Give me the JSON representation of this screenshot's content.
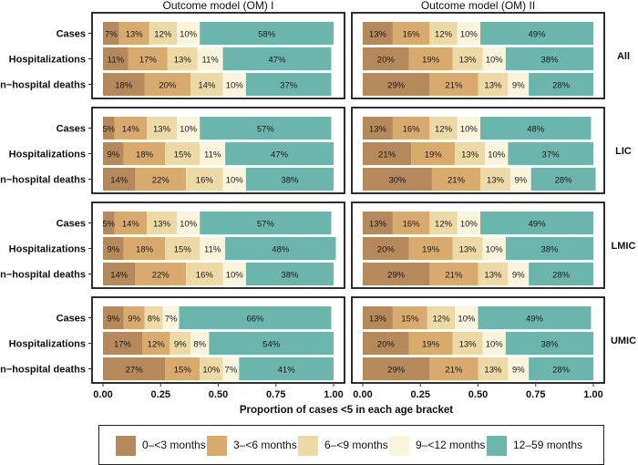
{
  "chart_data": {
    "type": "bar",
    "orientation": "horizontal",
    "stacked": true,
    "column_titles": [
      "Outcome model (OM) I",
      "Outcome model (OM) II"
    ],
    "row_labels": [
      "All",
      "LIC",
      "LMIC",
      "UMIC"
    ],
    "categories": [
      "Cases",
      "Hospitalizations",
      "In−hospital deaths"
    ],
    "xlabel": "Proportion of cases <5 in each age bracket",
    "xlim": [
      0,
      1
    ],
    "x_ticks": [
      "0.00",
      "0.25",
      "0.50",
      "0.75",
      "1.00"
    ],
    "legend_position": "bottom",
    "series_names": [
      "0–<3 months",
      "3–<6 months",
      "6–<9 months",
      "9–<12 months",
      "12–59 months"
    ],
    "colors": [
      "#b5895b",
      "#d9aa6e",
      "#ecd9a6",
      "#faf4dc",
      "#6cb5ad"
    ],
    "panels": [
      {
        "row": "All",
        "column": "Outcome model (OM) I",
        "bars": [
          [
            7,
            13,
            12,
            10,
            58
          ],
          [
            11,
            17,
            13,
            11,
            47
          ],
          [
            18,
            20,
            14,
            10,
            37
          ]
        ]
      },
      {
        "row": "All",
        "column": "Outcome model (OM) II",
        "bars": [
          [
            13,
            16,
            12,
            10,
            49
          ],
          [
            20,
            19,
            13,
            10,
            38
          ],
          [
            29,
            21,
            13,
            9,
            28
          ]
        ]
      },
      {
        "row": "LIC",
        "column": "Outcome model (OM) I",
        "bars": [
          [
            5,
            14,
            13,
            10,
            57
          ],
          [
            9,
            18,
            15,
            11,
            47
          ],
          [
            14,
            22,
            16,
            10,
            38
          ]
        ]
      },
      {
        "row": "LIC",
        "column": "Outcome model (OM) II",
        "bars": [
          [
            13,
            16,
            12,
            10,
            48
          ],
          [
            21,
            19,
            13,
            10,
            37
          ],
          [
            30,
            21,
            13,
            9,
            28
          ]
        ]
      },
      {
        "row": "LMIC",
        "column": "Outcome model (OM) I",
        "bars": [
          [
            5,
            14,
            13,
            10,
            57
          ],
          [
            9,
            18,
            15,
            11,
            48
          ],
          [
            14,
            22,
            16,
            10,
            38
          ]
        ]
      },
      {
        "row": "LMIC",
        "column": "Outcome model (OM) II",
        "bars": [
          [
            13,
            16,
            12,
            10,
            49
          ],
          [
            20,
            19,
            13,
            10,
            38
          ],
          [
            29,
            21,
            13,
            9,
            28
          ]
        ]
      },
      {
        "row": "UMIC",
        "column": "Outcome model (OM) I",
        "bars": [
          [
            9,
            9,
            8,
            7,
            66
          ],
          [
            17,
            12,
            9,
            8,
            54
          ],
          [
            27,
            15,
            10,
            7,
            41
          ]
        ]
      },
      {
        "row": "UMIC",
        "column": "Outcome model (OM) II",
        "bars": [
          [
            13,
            15,
            12,
            10,
            49
          ],
          [
            20,
            19,
            13,
            10,
            38
          ],
          [
            29,
            21,
            13,
            9,
            28
          ]
        ]
      }
    ]
  }
}
